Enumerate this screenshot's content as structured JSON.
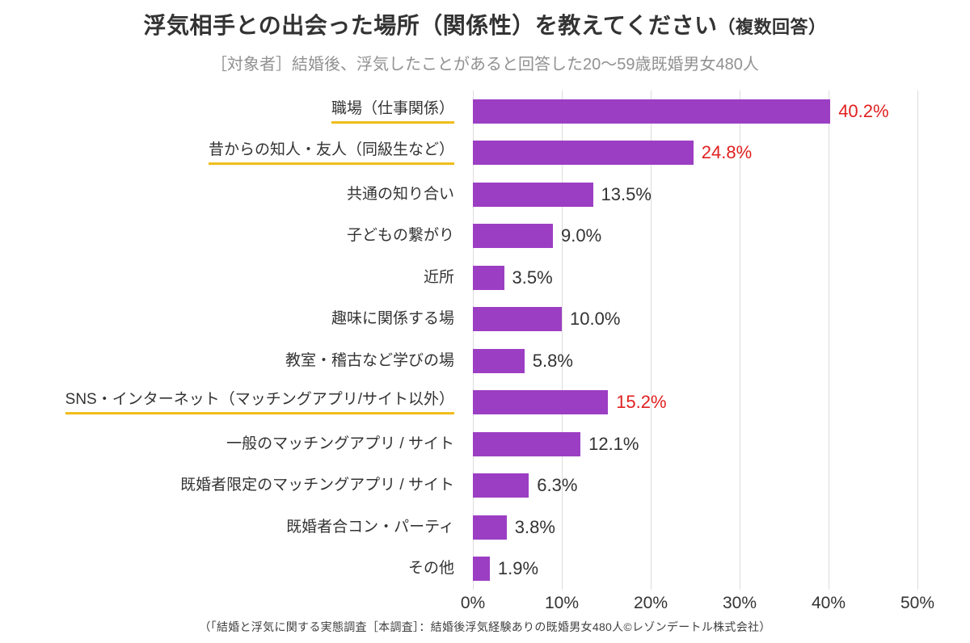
{
  "title": {
    "main": "浮気相手との出会った場所（関係性）を教えてください",
    "suffix": "（複数回答）"
  },
  "subtitle": "［対象者］結婚後、浮気したことがあると回答した20～59歳既婚男女480人",
  "footer": "（「結婚と浮気に関する実態調査［本調査］：結婚後浮気経験ありの既婚男女480人©レゾンデートル株式会社）",
  "colors": {
    "bar": "#9C3EC3",
    "highlight_value": "#E02020",
    "label": "#333333",
    "title": "#333333",
    "subtitle": "#919191",
    "underline": "#EFBC16",
    "gridline": "#DCDCDC",
    "footer": "#3F3F3F"
  },
  "chart_data": {
    "type": "bar",
    "orientation": "horizontal",
    "title": "浮気相手との出会った場所（関係性）を教えてください（複数回答）",
    "categories": [
      "職場（仕事関係）",
      "昔からの知人・友人（同級生など）",
      "共通の知り合い",
      "子どもの繋がり",
      "近所",
      "趣味に関係する場",
      "教室・稽古など学びの場",
      "SNS・インターネット（マッチングアプリ/サイト以外）",
      "一般のマッチングアプリ / サイト",
      "既婚者限定のマッチングアプリ / サイト",
      "既婚者合コン・パーティ",
      "その他"
    ],
    "values": [
      40.2,
      24.8,
      13.5,
      9.0,
      3.5,
      10.0,
      5.8,
      15.2,
      12.1,
      6.3,
      3.8,
      1.9
    ],
    "value_labels": [
      "40.2%",
      "24.8%",
      "13.5%",
      "9.0%",
      "3.5%",
      "10.0%",
      "5.8%",
      "15.2%",
      "12.1%",
      "6.3%",
      "3.8%",
      "1.9%"
    ],
    "highlighted": [
      true,
      true,
      false,
      false,
      false,
      false,
      false,
      true,
      false,
      false,
      false,
      false
    ],
    "xlim": [
      0,
      50
    ],
    "x_ticks": [
      "0%",
      "10%",
      "20%",
      "30%",
      "40%",
      "50%"
    ],
    "x_tick_values": [
      0,
      10,
      20,
      30,
      40,
      50
    ],
    "grid": true,
    "legend": false
  }
}
